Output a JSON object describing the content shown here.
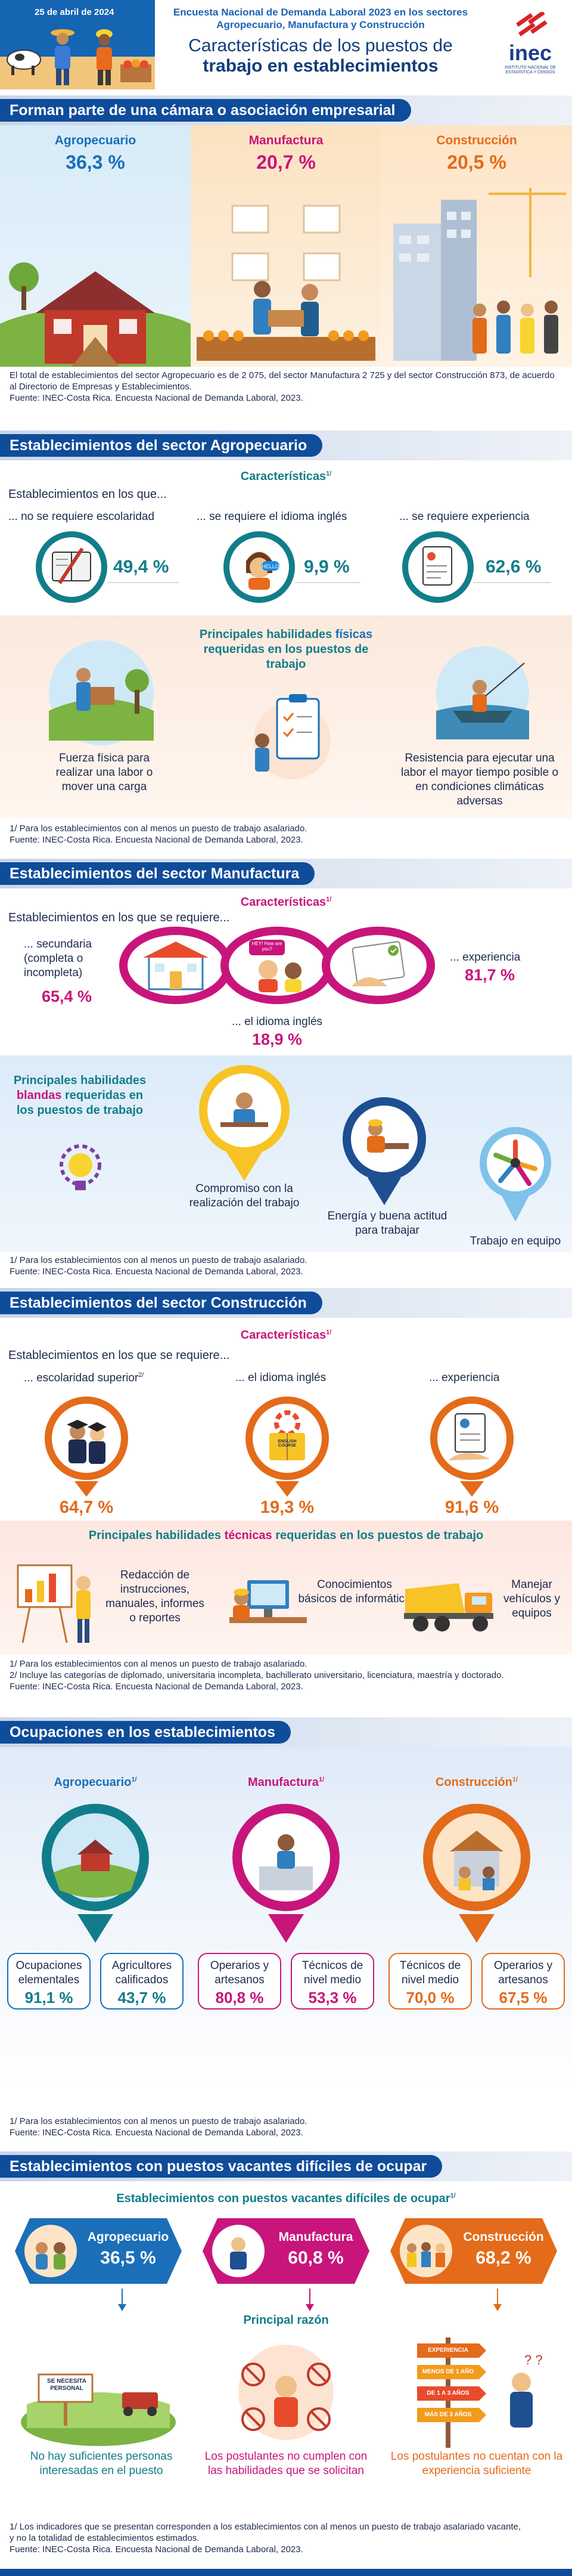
{
  "header": {
    "date": "25 de abril de 2024",
    "survey": "Encuesta Nacional de Demanda Laboral 2023 en los sectores Agropecuario, Manufactura y Construcción",
    "title_line1": "Características de los puestos de",
    "title_line2": "trabajo en establecimientos",
    "logo_text": "inec",
    "logo_sub": "INSTITUTO NACIONAL DE ESTADÍSTICA Y CENSOS"
  },
  "chamber": {
    "title": "Forman parte de una cámara o asociación empresarial",
    "sectors": [
      {
        "name": "Agropecuario",
        "value": "36,3 %"
      },
      {
        "name": "Manufactura",
        "value": "20,7 %"
      },
      {
        "name": "Construcción",
        "value": "20,5 %"
      }
    ],
    "note1": "El total de establecimientos del sector Agropecuario es de 2 075, del sector Manufactura 2 725 y del sector Construcción 873, de acuerdo al Directorio de Empresas y Establecimientos.",
    "source": "Fuente: INEC-Costa Rica. Encuesta Nacional de Demanda Laboral, 2023."
  },
  "agro": {
    "title": "Establecimientos del sector Agropecuario",
    "characteristics": "Características",
    "sup": "1/",
    "lead": "Establecimientos en los que...",
    "items": [
      {
        "label": "... no se requiere escolaridad",
        "value": "49,4 %"
      },
      {
        "label": "... se requiere el idioma inglés",
        "value": "9,9 %"
      },
      {
        "label": "... se requiere experiencia",
        "value": "62,6 %"
      }
    ],
    "skills_title_a": "Principales habilidades ",
    "skills_title_b": "físicas",
    "skills_title_c": " requeridas en los puestos de trabajo",
    "skill1": "Fuerza física para realizar una labor o mover una carga",
    "skill2": "Resistencia para ejecutar una labor el mayor tiempo posible o en condiciones climáticas adversas",
    "note": "1/ Para los establecimientos con al menos un puesto de trabajo asalariado.",
    "source": "Fuente: INEC-Costa Rica. Encuesta Nacional de Demanda Laboral, 2023."
  },
  "manu": {
    "title": "Establecimientos del sector Manufactura",
    "characteristics": "Características",
    "sup": "1/",
    "lead": "Establecimientos en los que se requiere...",
    "items": [
      {
        "label": "... secundaria (completa o incompleta)",
        "value": "65,4 %"
      },
      {
        "label": "... el idioma inglés",
        "value": "18,9 %"
      },
      {
        "label": "... experiencia",
        "value": "81,7 %"
      }
    ],
    "speech": "HEY! How are you?",
    "skills_title_a": "Principales habilidades ",
    "skills_title_b": "blandas",
    "skills_title_c": " requeridas en los puestos de trabajo",
    "skill1": "Compromiso con la realización del trabajo",
    "skill2": "Energía y buena actitud para trabajar",
    "skill3": "Trabajo en equipo",
    "note": "1/ Para los establecimientos con al menos un puesto de trabajo asalariado.",
    "source": "Fuente: INEC-Costa Rica. Encuesta Nacional de Demanda Laboral, 2023."
  },
  "cons": {
    "title": "Establecimientos del sector Construcción",
    "characteristics": "Características",
    "sup": "1/",
    "lead": "Establecimientos en los que se requiere...",
    "items": [
      {
        "label": "... escolaridad superior",
        "sup": "2/",
        "value": "64,7 %"
      },
      {
        "label": "... el idioma inglés",
        "value": "19,3 %"
      },
      {
        "label": "... experiencia",
        "value": "91,6 %"
      }
    ],
    "book_text": "ENGLISH COURSE",
    "skills_title_a": "Principales habilidades ",
    "skills_title_b": "técnicas",
    "skills_title_c": " requeridas en los puestos de trabajo",
    "skill1": "Redacción de instrucciones, manuales, informes o reportes",
    "skill2": "Conocimientos básicos de informática",
    "skill3": "Manejar vehículos y equipos",
    "note1": "1/ Para los establecimientos con al menos un puesto de trabajo asalariado.",
    "note2": "2/ Incluye las categorías de diplomado, universitaria incompleta, bachillerato universitario, licenciatura, maestría y doctorado.",
    "source": "Fuente: INEC-Costa Rica. Encuesta Nacional de Demanda Laboral, 2023."
  },
  "occ": {
    "title": "Ocupaciones en los establecimientos",
    "sectors": [
      {
        "name": "Agropecuario",
        "sup": "1/",
        "a_label": "Ocupaciones elementales",
        "a_value": "91,1 %",
        "b_label": "Agricultores calificados",
        "b_value": "43,7 %"
      },
      {
        "name": "Manufactura",
        "sup": "1/",
        "a_label": "Operarios y artesanos",
        "a_value": "80,8 %",
        "b_label": "Técnicos de nivel medio",
        "b_value": "53,3 %"
      },
      {
        "name": "Construcción",
        "sup": "1/",
        "a_label": "Técnicos de nivel medio",
        "a_value": "70,0 %",
        "b_label": "Operarios y artesanos",
        "b_value": "67,5 %"
      }
    ],
    "note": "1/ Para los establecimientos con al menos un puesto de trabajo asalariado.",
    "source": "Fuente: INEC-Costa Rica. Encuesta Nacional de Demanda Laboral, 2023."
  },
  "vac": {
    "title": "Establecimientos con puestos vacantes difíciles de ocupar",
    "sub": "Establecimientos con puestos vacantes difíciles de ocupar",
    "sup": "1/",
    "sectors": [
      {
        "name": "Agropecuario",
        "value": "36,5 %"
      },
      {
        "name": "Manufactura",
        "value": "60,8 %"
      },
      {
        "name": "Construcción",
        "value": "68,2 %"
      }
    ],
    "reason_title": "Principal razón",
    "reasons": [
      "No hay suficientes personas interesadas en el puesto",
      "Los postulantes no cumplen con las habilidades que se solicitan",
      "Los postulantes no cuentan con la experiencia suficiente"
    ],
    "sign_text": "SE NECESITA PERSONAL",
    "signpost": [
      "EXPERIENCIA",
      "MENOS DE 1 AÑO",
      "DE 1 A 3 AÑOS",
      "MÁS DE 3 AÑOS"
    ],
    "note1": "1/ Los indicadores que se presentan corresponden a los establecimientos con al menos un puesto de trabajo asalariado vacante,",
    "note2": "y no la totalidad de establecimientos estimados.",
    "source": "Fuente: INEC-Costa Rica. Encuesta Nacional de Demanda Laboral, 2023."
  },
  "colors": {
    "navy": "#0f4c9a",
    "teal": "#127d8a",
    "magenta": "#c8157b",
    "orange": "#e36b1a",
    "agro_text": "#1a6fb8",
    "manu_text": "#c8157b",
    "cons_text": "#e36b1a"
  }
}
